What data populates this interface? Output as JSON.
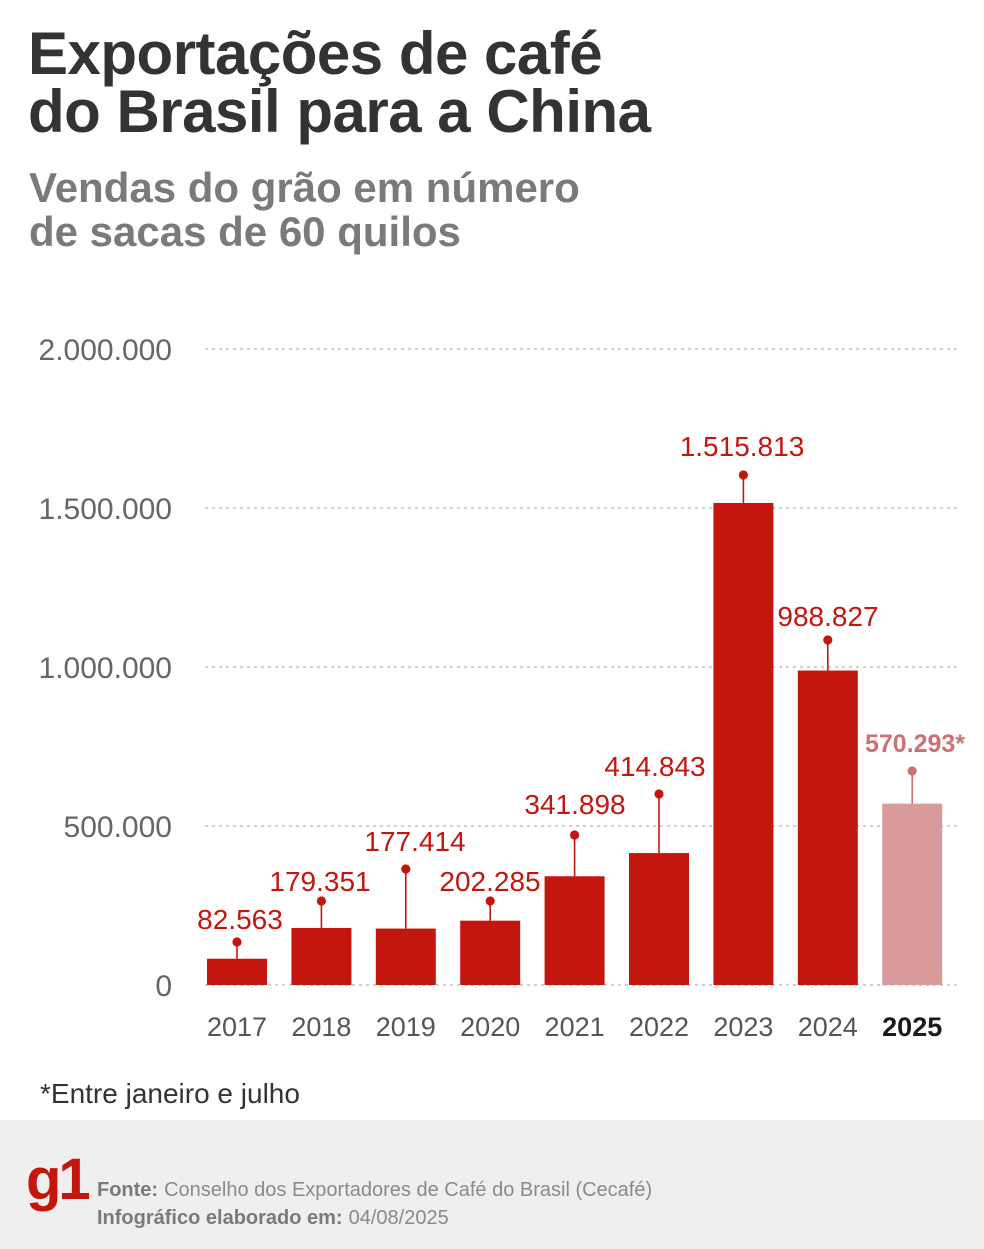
{
  "chart_data": {
    "type": "bar",
    "title": "Exportações de café\ndo Brasil para a China",
    "subtitle": "Vendas do grão em número\nde sacas de 60 quilos",
    "categories": [
      "2017",
      "2018",
      "2019",
      "2020",
      "2021",
      "2022",
      "2023",
      "2024",
      "2025"
    ],
    "values": [
      82563,
      179351,
      177414,
      202285,
      341898,
      414843,
      1515813,
      988827,
      570293
    ],
    "value_labels": [
      "82.563",
      "179.351",
      "177.414",
      "202.285",
      "341.898",
      "414.843",
      "1.515.813",
      "988.827",
      "570.293*"
    ],
    "y_ticks": [
      0,
      500000,
      1000000,
      1500000,
      2000000
    ],
    "y_tick_labels": [
      "0",
      "500.000",
      "1.000.000",
      "1.500.000",
      "2.000.000"
    ],
    "ylim": [
      0,
      2000000
    ],
    "grid": true,
    "legend": "none",
    "highlight_category": "2025",
    "colors": {
      "bar": "#c3160f",
      "highlight_bar": "#d99a9c",
      "value_label": "#c3160f",
      "highlight_label": "#cc7073",
      "gridline": "#b5b5b5",
      "tick_label": "#666666",
      "category_label": "#555555",
      "highlight_category_label": "#1a1a1a"
    }
  },
  "footnote": "*Entre janeiro e julho",
  "footer": {
    "logo": "g1",
    "source_label": "Fonte:",
    "source": "Conselho dos Exportadores de Café do Brasil (Cecafé)",
    "date_label": "Infográfico elaborado em:",
    "date": "04/08/2025"
  },
  "colors": {
    "title": "#333333",
    "subtitle": "#7a7a7a",
    "footer_background": "#efefef",
    "logo": "#c4170c"
  }
}
